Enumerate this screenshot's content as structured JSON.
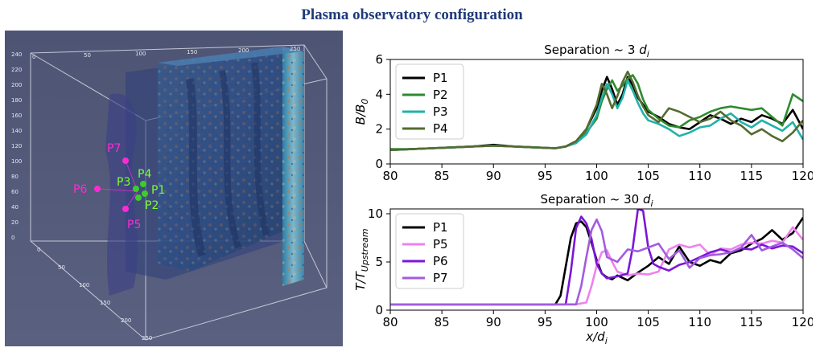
{
  "title": "Plasma observatory configuration",
  "viz3d": {
    "x_axis_ticks": [
      "0",
      "50",
      "100",
      "150",
      "200",
      "250"
    ],
    "y_axis_ticks": [
      "0",
      "50",
      "100",
      "150",
      "200",
      "250"
    ],
    "z_axis_ticks": [
      "0",
      "20",
      "40",
      "60",
      "80",
      "100",
      "120",
      "140",
      "160",
      "180",
      "200",
      "220",
      "240"
    ],
    "probes": [
      {
        "name": "P1",
        "color": "#7cff3a"
      },
      {
        "name": "P2",
        "color": "#7cff3a"
      },
      {
        "name": "P3",
        "color": "#7cff3a"
      },
      {
        "name": "P4",
        "color": "#7cff3a"
      },
      {
        "name": "P5",
        "color": "#ff2ad4"
      },
      {
        "name": "P6",
        "color": "#ff2ad4"
      },
      {
        "name": "P7",
        "color": "#ff2ad4"
      }
    ]
  },
  "chart_data": [
    {
      "type": "line",
      "title": "Separation ~ 3 d_i",
      "title_main": "Separation  ~  3 ",
      "title_var": "d",
      "title_sub": "i",
      "ylabel": "B/B_0",
      "ylabel_main": "B/B",
      "ylabel_sub": "0",
      "xlabel": "",
      "xlim": [
        80,
        120
      ],
      "ylim": [
        0,
        6
      ],
      "xticks": [
        80,
        85,
        90,
        95,
        100,
        105,
        110,
        115,
        120
      ],
      "yticks": [
        0,
        2,
        4,
        6
      ],
      "legend_position": "top-left",
      "series": [
        {
          "name": "P1",
          "color": "#000000",
          "x": [
            80,
            82,
            84,
            86,
            88,
            90,
            92,
            94,
            96,
            97,
            98,
            99,
            100,
            100.5,
            101,
            101.5,
            102,
            102.5,
            103,
            103.5,
            104,
            104.5,
            105,
            106,
            107,
            108,
            109,
            110,
            111,
            112,
            113,
            114,
            115,
            116,
            117,
            118,
            119,
            120
          ],
          "y": [
            0.8,
            0.85,
            0.9,
            0.95,
            1.0,
            1.1,
            1.0,
            0.95,
            0.9,
            1.0,
            1.3,
            2.0,
            3.2,
            4.2,
            5.0,
            4.3,
            3.4,
            4.0,
            5.0,
            4.5,
            3.8,
            3.4,
            3.0,
            2.7,
            2.3,
            2.1,
            2.0,
            2.4,
            2.8,
            2.6,
            2.3,
            2.6,
            2.4,
            2.8,
            2.6,
            2.3,
            3.1,
            2.0
          ]
        },
        {
          "name": "P2",
          "color": "#2e8b2e",
          "x": [
            80,
            82,
            84,
            86,
            88,
            90,
            92,
            94,
            96,
            97,
            98,
            99,
            100,
            100.5,
            101,
            101.5,
            102,
            102.5,
            103,
            103.5,
            104,
            104.5,
            105,
            106,
            107,
            108,
            109,
            110,
            111,
            112,
            113,
            114,
            115,
            116,
            117,
            118,
            119,
            120
          ],
          "y": [
            0.85,
            0.85,
            0.9,
            0.95,
            1.0,
            1.05,
            1.0,
            0.95,
            0.9,
            1.0,
            1.2,
            1.8,
            2.6,
            3.6,
            4.3,
            4.8,
            4.2,
            4.5,
            4.9,
            5.1,
            4.6,
            3.7,
            3.1,
            2.6,
            2.2,
            2.1,
            2.5,
            2.7,
            3.0,
            3.2,
            3.3,
            3.2,
            3.1,
            3.2,
            2.7,
            2.2,
            4.0,
            3.6
          ]
        },
        {
          "name": "P3",
          "color": "#20b2aa",
          "x": [
            80,
            82,
            84,
            86,
            88,
            90,
            92,
            94,
            96,
            97,
            98,
            99,
            100,
            100.5,
            101,
            101.5,
            102,
            102.5,
            103,
            103.5,
            104,
            104.5,
            105,
            106,
            107,
            108,
            109,
            110,
            111,
            112,
            113,
            114,
            115,
            116,
            117,
            118,
            119,
            120
          ],
          "y": [
            0.8,
            0.85,
            0.9,
            0.95,
            1.0,
            1.05,
            1.0,
            0.95,
            0.9,
            1.0,
            1.2,
            1.7,
            2.8,
            3.8,
            4.6,
            4.0,
            3.2,
            3.8,
            4.8,
            4.2,
            3.5,
            2.9,
            2.5,
            2.3,
            2.0,
            1.6,
            1.8,
            2.1,
            2.2,
            2.6,
            2.9,
            2.4,
            2.1,
            2.5,
            2.2,
            1.9,
            2.4,
            1.4
          ]
        },
        {
          "name": "P4",
          "color": "#556b2f",
          "x": [
            80,
            82,
            84,
            86,
            88,
            90,
            92,
            94,
            96,
            97,
            98,
            99,
            100,
            100.5,
            101,
            101.5,
            102,
            102.5,
            103,
            103.5,
            104,
            104.5,
            105,
            106,
            107,
            108,
            109,
            110,
            111,
            112,
            113,
            114,
            115,
            116,
            117,
            118,
            119,
            120
          ],
          "y": [
            0.8,
            0.85,
            0.9,
            0.95,
            1.0,
            1.05,
            1.0,
            0.95,
            0.9,
            1.0,
            1.3,
            2.0,
            3.4,
            4.6,
            4.0,
            3.2,
            3.9,
            4.7,
            5.3,
            4.7,
            3.9,
            3.3,
            2.8,
            2.4,
            3.2,
            3.0,
            2.7,
            2.4,
            2.6,
            3.0,
            2.5,
            2.2,
            1.7,
            2.0,
            1.6,
            1.3,
            1.8,
            2.5
          ]
        }
      ]
    },
    {
      "type": "line",
      "title": "Separation ~ 30 d_i",
      "title_main": "Separation  ~  30 ",
      "title_var": "d",
      "title_sub": "i",
      "ylabel": "T/T_Upstream",
      "ylabel_main": "T/T",
      "ylabel_sub": "Upstream",
      "xlabel": "x/d_i",
      "xlabel_main": "x/d",
      "xlabel_sub": "i",
      "xlim": [
        80,
        120
      ],
      "ylim": [
        0,
        10.5
      ],
      "xticks": [
        80,
        85,
        90,
        95,
        100,
        105,
        110,
        115,
        120
      ],
      "yticks": [
        0,
        5,
        10
      ],
      "legend_position": "top-left",
      "series": [
        {
          "name": "P1",
          "color": "#000000",
          "x": [
            80,
            84,
            88,
            92,
            95,
            96,
            96.5,
            97,
            97.5,
            98,
            98.5,
            99,
            99.5,
            100,
            100.5,
            101,
            101.5,
            102,
            103,
            104,
            105,
            106,
            107,
            108,
            109,
            110,
            111,
            112,
            113,
            114,
            115,
            116,
            117,
            118,
            119,
            120
          ],
          "y": [
            0.6,
            0.6,
            0.6,
            0.6,
            0.6,
            0.6,
            1.5,
            4.5,
            7.5,
            9.0,
            9.2,
            8.6,
            7.0,
            5.2,
            3.8,
            3.4,
            3.2,
            3.6,
            3.1,
            3.9,
            4.6,
            5.5,
            4.8,
            6.6,
            5.0,
            4.6,
            5.2,
            4.9,
            5.9,
            6.2,
            6.9,
            7.4,
            8.3,
            7.3,
            8.0,
            9.6
          ]
        },
        {
          "name": "P5",
          "color": "#ee82ee",
          "x": [
            80,
            84,
            88,
            92,
            96,
            97,
            98,
            99,
            99.5,
            100,
            100.5,
            101,
            101.5,
            102,
            103,
            104,
            105,
            106,
            107,
            108,
            109,
            110,
            111,
            112,
            113,
            114,
            115,
            116,
            117,
            118,
            119,
            120
          ],
          "y": [
            0.6,
            0.6,
            0.6,
            0.6,
            0.6,
            0.6,
            0.6,
            0.8,
            2.5,
            4.6,
            6.0,
            6.2,
            5.0,
            4.0,
            3.6,
            3.8,
            3.7,
            4.0,
            6.3,
            6.8,
            6.5,
            6.8,
            5.7,
            6.4,
            6.3,
            6.8,
            7.0,
            6.9,
            7.2,
            7.0,
            8.6,
            7.3
          ]
        },
        {
          "name": "P6",
          "color": "#7b16d8",
          "x": [
            80,
            84,
            88,
            92,
            95,
            96,
            97,
            97.5,
            98,
            98.5,
            99,
            99.5,
            100,
            100.5,
            101,
            102,
            103,
            103.5,
            104,
            104.5,
            105,
            105.5,
            106,
            107,
            108,
            109,
            110,
            111,
            112,
            113,
            114,
            115,
            116,
            117,
            118,
            119,
            120
          ],
          "y": [
            0.6,
            0.6,
            0.6,
            0.6,
            0.6,
            0.6,
            0.6,
            4.0,
            8.5,
            9.7,
            9.0,
            7.4,
            4.8,
            3.8,
            3.3,
            3.5,
            3.8,
            6.5,
            10.5,
            10.3,
            6.5,
            4.8,
            4.5,
            4.1,
            4.7,
            5.0,
            5.5,
            6.0,
            6.3,
            6.0,
            6.4,
            6.3,
            6.8,
            6.4,
            6.7,
            6.6,
            5.9
          ]
        },
        {
          "name": "P7",
          "color": "#a35be0",
          "x": [
            80,
            84,
            88,
            92,
            96,
            97,
            98,
            98.5,
            99,
            99.5,
            100,
            100.5,
            101,
            102,
            103,
            104,
            105,
            106,
            107,
            108,
            109,
            110,
            111,
            112,
            113,
            114,
            115,
            116,
            117,
            118,
            119,
            120
          ],
          "y": [
            0.6,
            0.6,
            0.6,
            0.6,
            0.6,
            0.6,
            0.6,
            2.5,
            5.5,
            8.3,
            9.4,
            8.2,
            5.5,
            5.0,
            6.3,
            6.1,
            6.5,
            6.9,
            5.3,
            6.2,
            4.4,
            5.4,
            5.7,
            5.8,
            6.0,
            6.5,
            7.8,
            6.2,
            6.6,
            7.0,
            6.3,
            5.4
          ]
        }
      ]
    }
  ]
}
